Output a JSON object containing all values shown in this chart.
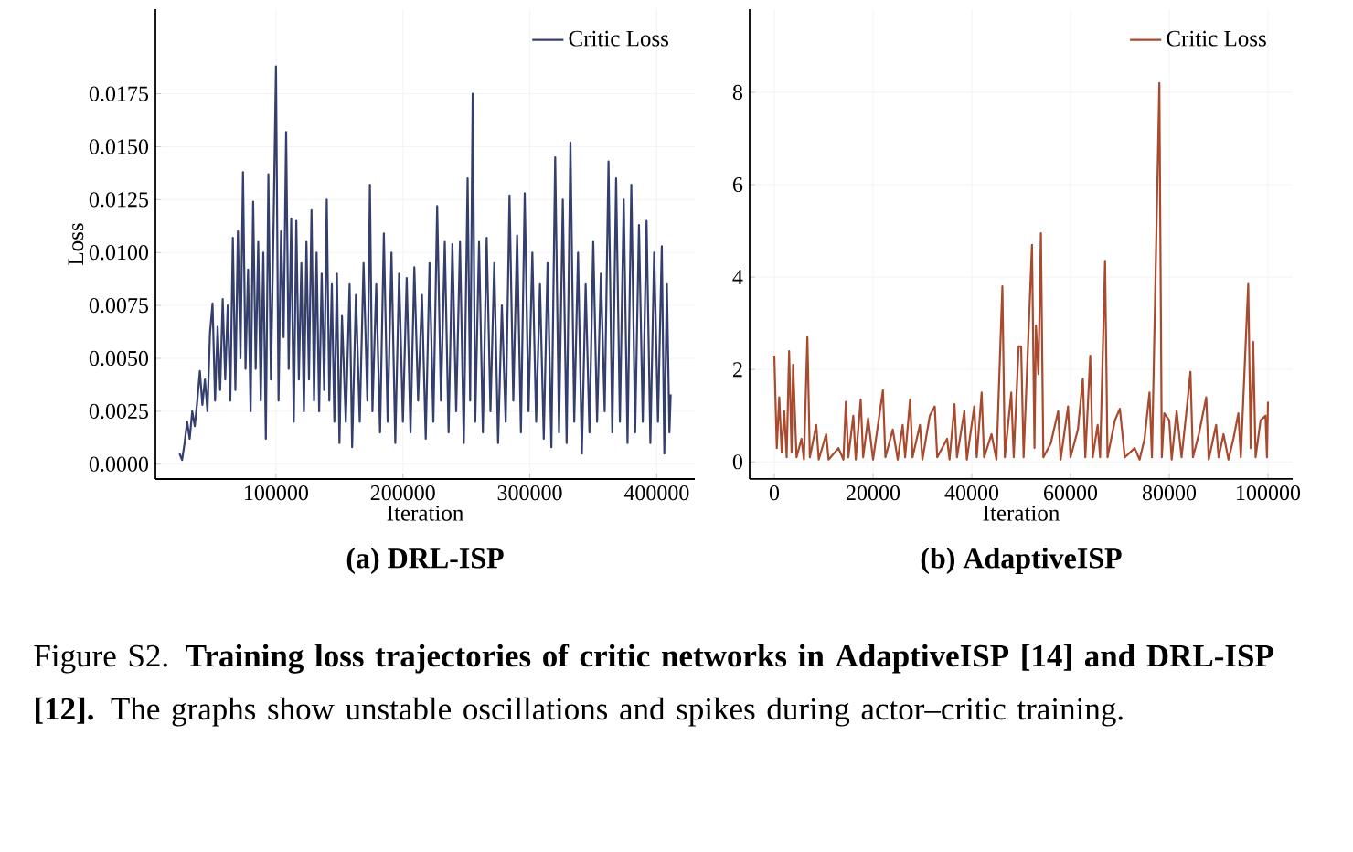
{
  "chart_data": [
    {
      "type": "line",
      "title": "(a) DRL-ISP",
      "xlabel": "Iteration",
      "ylabel": "Loss",
      "grid": true,
      "legend": "top right",
      "xlim": [
        5000,
        430000
      ],
      "ylim": [
        -0.0007,
        0.0215
      ],
      "xticks": [
        100000,
        200000,
        300000,
        400000
      ],
      "yticks": [
        {
          "value": 0,
          "label": "0.0000"
        },
        {
          "value": 0.0025,
          "label": "0.0025"
        },
        {
          "value": 0.005,
          "label": "0.0050"
        },
        {
          "value": 0.0075,
          "label": "0.0075"
        },
        {
          "value": 0.01,
          "label": "0.0100"
        },
        {
          "value": 0.0125,
          "label": "0.0125"
        },
        {
          "value": 0.015,
          "label": "0.0150"
        },
        {
          "value": 0.0175,
          "label": "0.0175"
        }
      ],
      "annotations": [
        "Figure S2. **Training loss trajectories of critic networks in AdaptiveISP [14] and DRL-ISP [12].** The graphs show unstable oscillations and spikes during actor–critic training."
      ],
      "x": [
        24000,
        26000,
        28000,
        30000,
        32000,
        34000,
        36000,
        38000,
        40000,
        42000,
        44000,
        46000,
        48000,
        50000,
        52000,
        54000,
        56000,
        58000,
        60000,
        62000,
        64000,
        66000,
        68000,
        70000,
        72000,
        74000,
        76000,
        78000,
        80000,
        82000,
        84000,
        86000,
        88000,
        90000,
        92000,
        94000,
        96000,
        98000,
        100000,
        102000,
        104000,
        106000,
        108000,
        110000,
        112000,
        114000,
        116000,
        118000,
        120000,
        122000,
        124000,
        126000,
        128000,
        130000,
        132000,
        134000,
        136000,
        138000,
        140000,
        142000,
        144000,
        146000,
        148000,
        150000,
        152000,
        155000,
        158000,
        160000,
        163000,
        166000,
        169000,
        172000,
        174000,
        176000,
        179000,
        182000,
        185000,
        188000,
        191000,
        194000,
        197000,
        200000,
        203000,
        206000,
        209000,
        212000,
        215000,
        218000,
        221000,
        224000,
        227000,
        230000,
        233000,
        236000,
        239000,
        242000,
        245000,
        248000,
        251000,
        253000,
        255000,
        257000,
        260000,
        263000,
        266000,
        269000,
        272000,
        275000,
        278000,
        281000,
        284000,
        287000,
        290000,
        293000,
        296000,
        299000,
        302000,
        305000,
        308000,
        311000,
        314000,
        317000,
        320000,
        323000,
        326000,
        329000,
        332000,
        335000,
        338000,
        341000,
        344000,
        347000,
        350000,
        353000,
        356000,
        359000,
        362000,
        365000,
        368000,
        371000,
        374000,
        377000,
        380000,
        383000,
        386000,
        389000,
        392000,
        395000,
        398000,
        401000,
        404000,
        406000,
        408000,
        410000,
        411000
      ],
      "series": [
        {
          "name": "Critic Loss",
          "color": "#343f6e",
          "values": [
            0.0005,
            0.0002,
            0.001,
            0.002,
            0.0012,
            0.0025,
            0.0018,
            0.003,
            0.0044,
            0.0028,
            0.004,
            0.0025,
            0.0062,
            0.0076,
            0.003,
            0.0065,
            0.0035,
            0.0078,
            0.004,
            0.0075,
            0.003,
            0.0107,
            0.0035,
            0.011,
            0.005,
            0.0138,
            0.0045,
            0.0092,
            0.0025,
            0.0124,
            0.0045,
            0.0105,
            0.003,
            0.01,
            0.0012,
            0.0137,
            0.004,
            0.011,
            0.0188,
            0.003,
            0.011,
            0.006,
            0.0157,
            0.0045,
            0.0116,
            0.002,
            0.0115,
            0.004,
            0.0095,
            0.0025,
            0.0105,
            0.004,
            0.012,
            0.003,
            0.01,
            0.0025,
            0.009,
            0.0035,
            0.0125,
            0.003,
            0.0085,
            0.002,
            0.009,
            0.001,
            0.007,
            0.002,
            0.0085,
            0.0008,
            0.008,
            0.002,
            0.0095,
            0.003,
            0.0132,
            0.0025,
            0.0085,
            0.0015,
            0.0109,
            0.002,
            0.01,
            0.001,
            0.009,
            0.002,
            0.0088,
            0.0015,
            0.0093,
            0.003,
            0.008,
            0.0012,
            0.0095,
            0.002,
            0.0122,
            0.003,
            0.0105,
            0.0015,
            0.0104,
            0.0025,
            0.0105,
            0.001,
            0.0135,
            0.003,
            0.0175,
            0.002,
            0.0105,
            0.0015,
            0.0107,
            0.0025,
            0.0095,
            0.001,
            0.0075,
            0.002,
            0.0127,
            0.003,
            0.0108,
            0.0015,
            0.0128,
            0.0025,
            0.01,
            0.002,
            0.0085,
            0.0012,
            0.0095,
            0.0008,
            0.0145,
            0.0015,
            0.0125,
            0.001,
            0.0152,
            0.002,
            0.01,
            0.0005,
            0.0085,
            0.0015,
            0.0105,
            0.002,
            0.009,
            0.0025,
            0.0143,
            0.0015,
            0.0135,
            0.002,
            0.0125,
            0.001,
            0.0132,
            0.0015,
            0.0113,
            0.002,
            0.0115,
            0.001,
            0.01,
            0.002,
            0.0103,
            0.0005,
            0.0085,
            0.0015,
            0.0033
          ]
        }
      ]
    },
    {
      "type": "line",
      "title": "(b) AdaptiveISP",
      "xlabel": "Iteration",
      "grid": true,
      "legend": "top right",
      "xlim": [
        -5000,
        105000
      ],
      "ylim": [
        -0.37,
        9.8
      ],
      "xticks": [
        0,
        20000,
        40000,
        60000,
        80000,
        100000
      ],
      "yticks": [
        0,
        2,
        4,
        6,
        8
      ],
      "x": [
        0,
        500,
        1000,
        1500,
        2000,
        2500,
        3000,
        3500,
        3800,
        4500,
        5500,
        6000,
        6700,
        7200,
        8500,
        9000,
        10500,
        11000,
        13000,
        14000,
        14500,
        15000,
        16000,
        16500,
        17500,
        18000,
        19000,
        20000,
        22000,
        22500,
        24000,
        25000,
        26000,
        26500,
        27500,
        28000,
        29500,
        30000,
        31500,
        32500,
        33000,
        35000,
        35500,
        36500,
        37000,
        38500,
        39000,
        40500,
        41000,
        42000,
        42500,
        44000,
        45000,
        46200,
        46700,
        48000,
        48500,
        49500,
        50000,
        50500,
        52200,
        52700,
        53000,
        53500,
        54000,
        54500,
        56000,
        57500,
        58000,
        59500,
        60000,
        61500,
        62500,
        63000,
        64000,
        64500,
        65500,
        66000,
        67000,
        67500,
        69000,
        70000,
        71000,
        73000,
        74000,
        75000,
        76000,
        76500,
        78000,
        78500,
        79000,
        80000,
        80500,
        81500,
        82500,
        83500,
        84300,
        84800,
        86000,
        87500,
        88000,
        89500,
        90000,
        91000,
        92000,
        93000,
        94000,
        94500,
        96000,
        96500,
        97000,
        97500,
        98500,
        99500,
        99800,
        100000
      ],
      "series": [
        {
          "name": "Critic Loss",
          "color": "#a84a2e",
          "values": [
            2.3,
            0.3,
            1.4,
            0.2,
            1.1,
            0.1,
            2.4,
            0.2,
            2.1,
            0.1,
            0.5,
            0.05,
            2.7,
            0.1,
            0.8,
            0.05,
            0.6,
            0.05,
            0.3,
            0.05,
            1.3,
            0.1,
            1.0,
            0.05,
            1.35,
            0.1,
            0.95,
            0.05,
            1.55,
            0.1,
            0.7,
            0.05,
            0.8,
            0.1,
            1.35,
            0.1,
            0.8,
            0.05,
            1.0,
            1.2,
            0.1,
            0.5,
            0.05,
            1.25,
            0.1,
            1.1,
            0.05,
            1.2,
            0.1,
            1.5,
            0.1,
            0.6,
            0.05,
            3.8,
            0.1,
            1.5,
            0.1,
            2.5,
            2.5,
            0.1,
            4.7,
            0.3,
            2.95,
            1.9,
            4.95,
            0.1,
            0.4,
            1.1,
            0.05,
            1.2,
            0.1,
            0.7,
            1.8,
            0.1,
            2.3,
            0.1,
            0.8,
            0.1,
            4.35,
            0.1,
            0.9,
            1.15,
            0.1,
            0.3,
            0.05,
            0.5,
            1.5,
            0.1,
            8.2,
            0.1,
            1.05,
            0.9,
            0.05,
            1.1,
            0.1,
            1.1,
            1.95,
            0.1,
            0.6,
            1.4,
            0.05,
            0.8,
            0.1,
            0.6,
            0.05,
            0.5,
            1.05,
            0.1,
            3.85,
            0.3,
            2.6,
            0.1,
            0.9,
            1.0,
            0.1,
            1.3
          ]
        }
      ]
    }
  ]
}
